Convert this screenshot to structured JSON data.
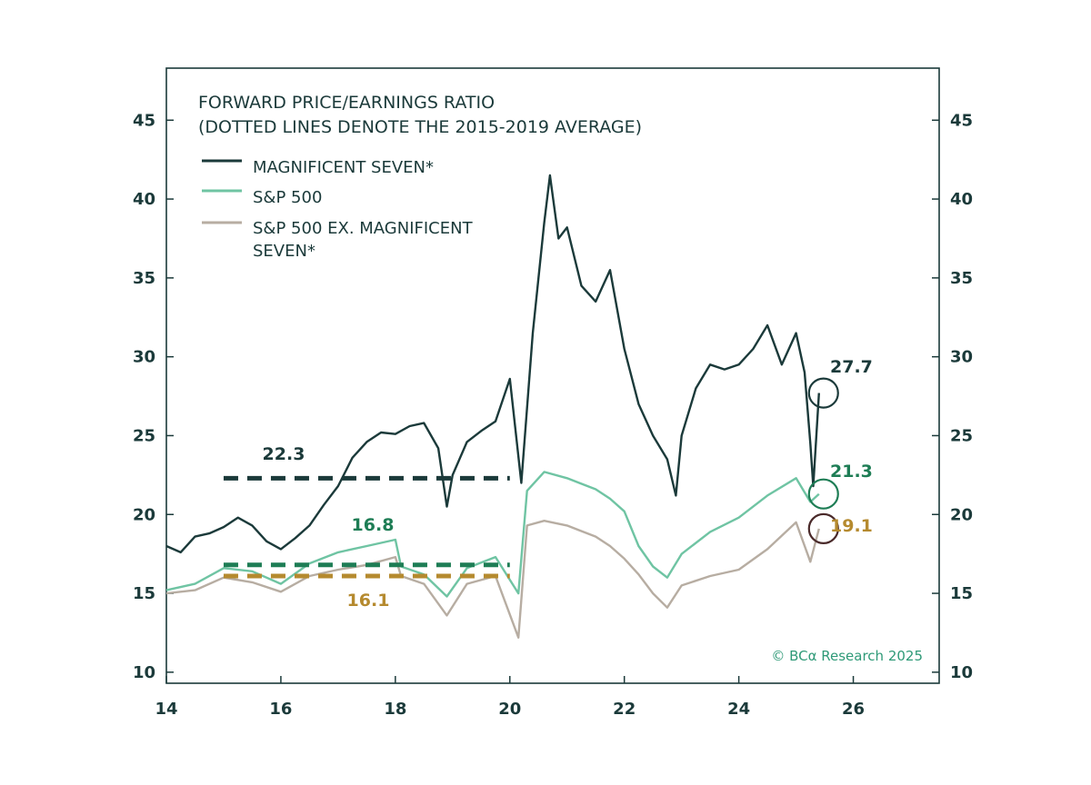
{
  "chart_data": {
    "type": "line",
    "title": "FORWARD PRICE/EARNINGS RATIO",
    "subtitle": "(DOTTED LINES DENOTE THE 2015-2019 AVERAGE)",
    "xlabel": "",
    "ylabel": "",
    "x_ticks": [
      "14",
      "16",
      "18",
      "20",
      "22",
      "24",
      "26"
    ],
    "y_ticks": [
      "10",
      "15",
      "20",
      "25",
      "30",
      "35",
      "40",
      "45"
    ],
    "xlim": [
      2014,
      2027.5
    ],
    "ylim": [
      9.3,
      48.3
    ],
    "grid": false,
    "legend_position": "top-left",
    "series": [
      {
        "name": "MAGNIFICENT SEVEN*",
        "color": "#1b3a3a",
        "points": [
          [
            2014.0,
            18.0
          ],
          [
            2014.25,
            17.6
          ],
          [
            2014.5,
            18.6
          ],
          [
            2014.75,
            18.8
          ],
          [
            2015.0,
            19.2
          ],
          [
            2015.25,
            19.8
          ],
          [
            2015.5,
            19.3
          ],
          [
            2015.75,
            18.3
          ],
          [
            2016.0,
            17.8
          ],
          [
            2016.25,
            18.5
          ],
          [
            2016.5,
            19.3
          ],
          [
            2016.75,
            20.6
          ],
          [
            2017.0,
            21.8
          ],
          [
            2017.25,
            23.6
          ],
          [
            2017.5,
            24.6
          ],
          [
            2017.75,
            25.2
          ],
          [
            2018.0,
            25.1
          ],
          [
            2018.25,
            25.6
          ],
          [
            2018.5,
            25.8
          ],
          [
            2018.75,
            24.2
          ],
          [
            2018.9,
            20.5
          ],
          [
            2019.0,
            22.5
          ],
          [
            2019.25,
            24.6
          ],
          [
            2019.5,
            25.3
          ],
          [
            2019.75,
            25.9
          ],
          [
            2020.0,
            28.6
          ],
          [
            2020.2,
            22.0
          ],
          [
            2020.4,
            31.5
          ],
          [
            2020.6,
            38.5
          ],
          [
            2020.7,
            41.5
          ],
          [
            2020.85,
            37.5
          ],
          [
            2021.0,
            38.2
          ],
          [
            2021.25,
            34.5
          ],
          [
            2021.5,
            33.5
          ],
          [
            2021.75,
            35.5
          ],
          [
            2022.0,
            30.5
          ],
          [
            2022.25,
            27.0
          ],
          [
            2022.5,
            25.0
          ],
          [
            2022.75,
            23.5
          ],
          [
            2022.9,
            21.2
          ],
          [
            2023.0,
            25.0
          ],
          [
            2023.25,
            28.0
          ],
          [
            2023.5,
            29.5
          ],
          [
            2023.75,
            29.2
          ],
          [
            2024.0,
            29.5
          ],
          [
            2024.25,
            30.5
          ],
          [
            2024.5,
            32.0
          ],
          [
            2024.75,
            29.5
          ],
          [
            2025.0,
            31.5
          ],
          [
            2025.15,
            29.0
          ],
          [
            2025.25,
            24.5
          ],
          [
            2025.3,
            21.8
          ],
          [
            2025.4,
            27.7
          ]
        ]
      },
      {
        "name": "S&P 500",
        "color": "#6fc4a3",
        "points": [
          [
            2014.0,
            15.2
          ],
          [
            2014.5,
            15.6
          ],
          [
            2015.0,
            16.6
          ],
          [
            2015.5,
            16.4
          ],
          [
            2016.0,
            15.6
          ],
          [
            2016.5,
            16.9
          ],
          [
            2017.0,
            17.6
          ],
          [
            2017.5,
            18.0
          ],
          [
            2018.0,
            18.4
          ],
          [
            2018.1,
            16.7
          ],
          [
            2018.5,
            16.2
          ],
          [
            2018.9,
            14.8
          ],
          [
            2019.25,
            16.6
          ],
          [
            2019.75,
            17.3
          ],
          [
            2020.15,
            15.0
          ],
          [
            2020.3,
            21.5
          ],
          [
            2020.6,
            22.7
          ],
          [
            2021.0,
            22.3
          ],
          [
            2021.5,
            21.6
          ],
          [
            2021.75,
            21.0
          ],
          [
            2022.0,
            20.2
          ],
          [
            2022.25,
            18.0
          ],
          [
            2022.5,
            16.7
          ],
          [
            2022.75,
            16.0
          ],
          [
            2023.0,
            17.5
          ],
          [
            2023.5,
            18.9
          ],
          [
            2024.0,
            19.8
          ],
          [
            2024.5,
            21.2
          ],
          [
            2025.0,
            22.3
          ],
          [
            2025.25,
            20.8
          ],
          [
            2025.4,
            21.3
          ]
        ]
      },
      {
        "name": "S&P 500 EX. MAGNIFICENT SEVEN*",
        "color": "#b7ada2",
        "points": [
          [
            2014.0,
            15.0
          ],
          [
            2014.5,
            15.2
          ],
          [
            2015.0,
            16.0
          ],
          [
            2015.5,
            15.7
          ],
          [
            2016.0,
            15.1
          ],
          [
            2016.5,
            16.1
          ],
          [
            2017.0,
            16.5
          ],
          [
            2017.5,
            16.8
          ],
          [
            2018.0,
            17.3
          ],
          [
            2018.1,
            16.1
          ],
          [
            2018.5,
            15.6
          ],
          [
            2018.9,
            13.6
          ],
          [
            2019.25,
            15.6
          ],
          [
            2019.75,
            16.1
          ],
          [
            2020.15,
            12.2
          ],
          [
            2020.3,
            19.3
          ],
          [
            2020.6,
            19.6
          ],
          [
            2021.0,
            19.3
          ],
          [
            2021.5,
            18.6
          ],
          [
            2021.75,
            18.0
          ],
          [
            2022.0,
            17.2
          ],
          [
            2022.25,
            16.2
          ],
          [
            2022.5,
            15.0
          ],
          [
            2022.75,
            14.1
          ],
          [
            2023.0,
            15.5
          ],
          [
            2023.5,
            16.1
          ],
          [
            2024.0,
            16.5
          ],
          [
            2024.5,
            17.8
          ],
          [
            2025.0,
            19.5
          ],
          [
            2025.25,
            17.0
          ],
          [
            2025.4,
            19.1
          ]
        ]
      }
    ],
    "averages": [
      {
        "series": "MAGNIFICENT SEVEN*",
        "value": 22.3,
        "label": "22.3",
        "color": "#1b3a3a",
        "x_range": [
          2015,
          2020
        ]
      },
      {
        "series": "S&P 500",
        "value": 16.8,
        "label": "16.8",
        "color": "#1e7d55",
        "x_range": [
          2015,
          2020
        ]
      },
      {
        "series": "S&P 500 EX. MAGNIFICENT SEVEN*",
        "value": 16.1,
        "label": "16.1",
        "color": "#b58a2f",
        "x_range": [
          2015,
          2020
        ]
      }
    ],
    "latest": [
      {
        "series": "MAGNIFICENT SEVEN*",
        "x": 2025.4,
        "value": 27.7,
        "label": "27.7",
        "color": "#1b3a3a"
      },
      {
        "series": "S&P 500",
        "x": 2025.4,
        "value": 21.3,
        "label": "21.3",
        "color": "#1e7d55"
      },
      {
        "series": "S&P 500 EX. MAGNIFICENT SEVEN*",
        "x": 2025.4,
        "value": 19.1,
        "label": "19.1",
        "color": "#b58a2f",
        "ring_color": "#4a2a2a"
      }
    ],
    "source": "© BCα Research 2025",
    "source_color": "#2f9a78"
  }
}
